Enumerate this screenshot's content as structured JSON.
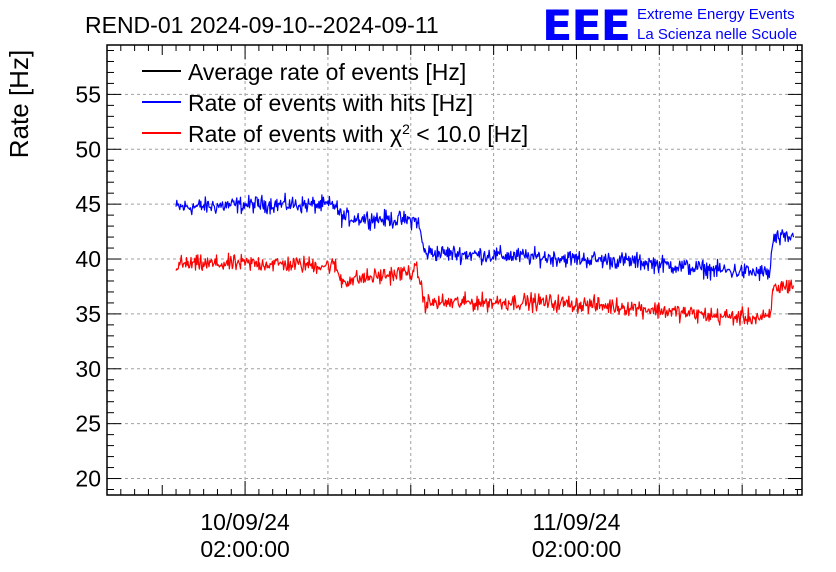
{
  "chart_data": {
    "type": "line",
    "title": "REND-01 2024-09-10--2024-09-11",
    "ylabel": "Rate [Hz]",
    "xlabel": "",
    "ylim": [
      18.5,
      59.5
    ],
    "y_ticks": [
      20,
      25,
      30,
      35,
      40,
      45,
      50,
      55
    ],
    "x_ticks": [
      {
        "date": "10/09/24",
        "time": "02:00:00"
      },
      {
        "date": "11/09/24",
        "time": "02:00:00"
      }
    ],
    "x_range": [
      "2024-09-09T16:00",
      "2024-09-11T18:20"
    ],
    "grid": true,
    "legend": {
      "placement": "top-left",
      "entries": [
        {
          "label": "Average rate of events [Hz]",
          "color": "#000000"
        },
        {
          "label_pre": "Rate of events with hits [Hz]",
          "color": "#0000ff"
        },
        {
          "label_pre": "Rate of events with ",
          "label_chi": "χ",
          "label_sup": "2",
          "label_post": " < 10.0 [Hz]",
          "color": "#ff0000"
        }
      ]
    },
    "series": [
      {
        "name": "Average rate of events [Hz]",
        "color": "#000000",
        "points": []
      },
      {
        "name": "Rate of events with hits [Hz]",
        "color": "#0000ff",
        "points": [
          {
            "x": "2024-09-09T21:00",
            "y": 44.7
          },
          {
            "x": "2024-09-10T03:00",
            "y": 45.0
          },
          {
            "x": "2024-09-10T08:30",
            "y": 44.9
          },
          {
            "x": "2024-09-10T09:00",
            "y": 43.8
          },
          {
            "x": "2024-09-10T14:30",
            "y": 43.5
          },
          {
            "x": "2024-09-10T15:00",
            "y": 40.6
          },
          {
            "x": "2024-09-10T23:00",
            "y": 40.2
          },
          {
            "x": "2024-09-11T06:00",
            "y": 39.8
          },
          {
            "x": "2024-09-11T12:00",
            "y": 39.0
          },
          {
            "x": "2024-09-11T16:00",
            "y": 38.7
          },
          {
            "x": "2024-09-11T16:15",
            "y": 41.8
          },
          {
            "x": "2024-09-11T17:45",
            "y": 42.0
          }
        ]
      },
      {
        "name": "Rate of events with χ2 < 10.0 [Hz]",
        "color": "#ff0000",
        "points": [
          {
            "x": "2024-09-09T21:00",
            "y": 39.5
          },
          {
            "x": "2024-09-10T03:00",
            "y": 39.6
          },
          {
            "x": "2024-09-10T08:30",
            "y": 39.4
          },
          {
            "x": "2024-09-10T09:00",
            "y": 38.0
          },
          {
            "x": "2024-09-10T14:30",
            "y": 38.9
          },
          {
            "x": "2024-09-10T15:00",
            "y": 36.0
          },
          {
            "x": "2024-09-10T23:00",
            "y": 36.1
          },
          {
            "x": "2024-09-11T06:00",
            "y": 35.6
          },
          {
            "x": "2024-09-11T12:00",
            "y": 34.8
          },
          {
            "x": "2024-09-11T16:00",
            "y": 34.6
          },
          {
            "x": "2024-09-11T16:15",
            "y": 37.3
          },
          {
            "x": "2024-09-11T17:45",
            "y": 37.7
          }
        ]
      }
    ]
  },
  "logo": {
    "mark": "EEE",
    "line1": "Extreme Energy Events",
    "line2": "La Scienza nelle Scuole",
    "color": "#0000ff"
  }
}
